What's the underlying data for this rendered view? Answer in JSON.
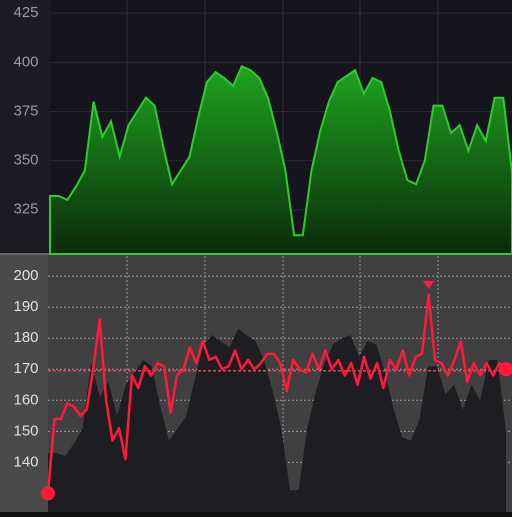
{
  "chart_data": [
    {
      "type": "area",
      "ylim": [
        302.5,
        431.7
      ],
      "yticks": [
        325,
        350,
        375,
        400,
        425
      ],
      "grid": true,
      "series": [
        {
          "color": "#2ecc2e",
          "values": [
            332,
            332,
            330,
            337,
            345,
            380,
            362,
            370,
            352,
            368,
            375,
            382,
            378,
            357,
            338,
            345,
            352,
            372,
            390,
            395,
            392,
            388,
            398,
            396,
            392,
            382,
            365,
            345,
            312,
            312,
            345,
            365,
            380,
            390,
            393,
            396,
            384,
            392,
            390,
            375,
            355,
            340,
            338,
            350,
            378,
            378,
            364,
            368,
            355,
            368,
            360,
            382,
            382,
            344
          ]
        }
      ]
    },
    {
      "type": "line",
      "ylim": [
        124,
        206.5
      ],
      "yticks": [
        140,
        150,
        160,
        170,
        180,
        190,
        200
      ],
      "grid": true,
      "reference": 169.5,
      "series": [
        {
          "type": "area",
          "color": "#1e1e22",
          "values": [
            143,
            143,
            142,
            146,
            151,
            172,
            161,
            166,
            155,
            165,
            169,
            173,
            171,
            158,
            147,
            151,
            155,
            167,
            178,
            181,
            179,
            177,
            183,
            181,
            179,
            173,
            163,
            151,
            131,
            131,
            151,
            163,
            172,
            178,
            180,
            181,
            174,
            179,
            178,
            169,
            157,
            148,
            147,
            154,
            171,
            171,
            162,
            165,
            157,
            165,
            160,
            173,
            173,
            150
          ]
        },
        {
          "type": "line",
          "color": "#ff1a3c",
          "values": [
            130,
            154,
            154,
            159,
            158,
            155,
            157,
            170,
            186,
            160,
            147,
            151,
            141,
            168,
            164,
            171,
            168,
            172,
            171,
            156,
            168,
            170,
            177,
            172,
            179,
            173,
            174,
            170,
            171,
            176,
            170,
            173,
            170,
            172,
            175,
            175,
            172,
            163,
            173,
            170,
            169,
            175,
            170,
            176,
            170,
            173,
            168,
            172,
            165,
            174,
            167,
            172,
            164,
            173,
            170,
            176,
            168,
            174,
            175,
            194,
            173,
            172,
            168,
            173,
            179,
            166,
            172,
            168,
            172,
            168,
            172,
            170
          ]
        }
      ]
    }
  ]
}
